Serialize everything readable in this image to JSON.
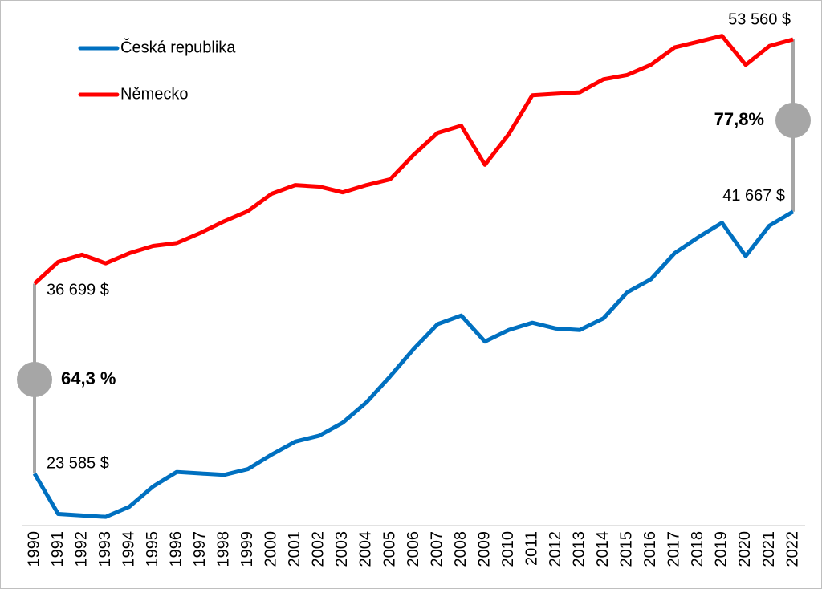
{
  "chart_data": {
    "type": "line",
    "categories": [
      "1990",
      "1991",
      "1992",
      "1993",
      "1994",
      "1995",
      "1996",
      "1997",
      "1998",
      "1999",
      "2000",
      "2001",
      "2002",
      "2003",
      "2004",
      "2005",
      "2006",
      "2007",
      "2008",
      "2009",
      "2010",
      "2011",
      "2012",
      "2013",
      "2014",
      "2015",
      "2016",
      "2017",
      "2018",
      "2019",
      "2020",
      "2021",
      "2022"
    ],
    "series": [
      {
        "name": "Česká republika",
        "color": "#0070c0",
        "values": [
          23585,
          20800,
          20700,
          20600,
          21300,
          22700,
          23700,
          23600,
          23500,
          23900,
          24900,
          25800,
          26200,
          27100,
          28500,
          30300,
          32200,
          33900,
          34500,
          32700,
          33500,
          34000,
          33600,
          33500,
          34300,
          36100,
          37000,
          38800,
          39900,
          40900,
          38600,
          40700,
          41667
        ],
        "value_labels": [
          "23 585 $",
          null,
          null,
          null,
          null,
          null,
          null,
          null,
          null,
          null,
          null,
          null,
          null,
          null,
          null,
          null,
          null,
          null,
          null,
          null,
          null,
          null,
          null,
          null,
          null,
          null,
          null,
          null,
          null,
          null,
          null,
          null,
          "41 667 $"
        ]
      },
      {
        "name": "Německo",
        "color": "#ff0000",
        "values": [
          36699,
          38200,
          38700,
          38100,
          38800,
          39300,
          39500,
          40200,
          41000,
          41700,
          42900,
          43500,
          43400,
          43000,
          43500,
          43900,
          45600,
          47100,
          47600,
          44900,
          47000,
          49700,
          49800,
          49900,
          50800,
          51100,
          51800,
          53000,
          53400,
          53800,
          51800,
          53100,
          53560
        ],
        "value_labels": [
          "36 699 $",
          null,
          null,
          null,
          null,
          null,
          null,
          null,
          null,
          null,
          null,
          null,
          null,
          null,
          null,
          null,
          null,
          null,
          null,
          null,
          null,
          null,
          null,
          null,
          null,
          null,
          null,
          null,
          null,
          null,
          null,
          null,
          "53 560 $"
        ]
      }
    ],
    "annotations": [
      "64,3 %",
      "77,8%"
    ],
    "ylim": [
      20000,
      55000
    ],
    "legend": "top-left"
  }
}
